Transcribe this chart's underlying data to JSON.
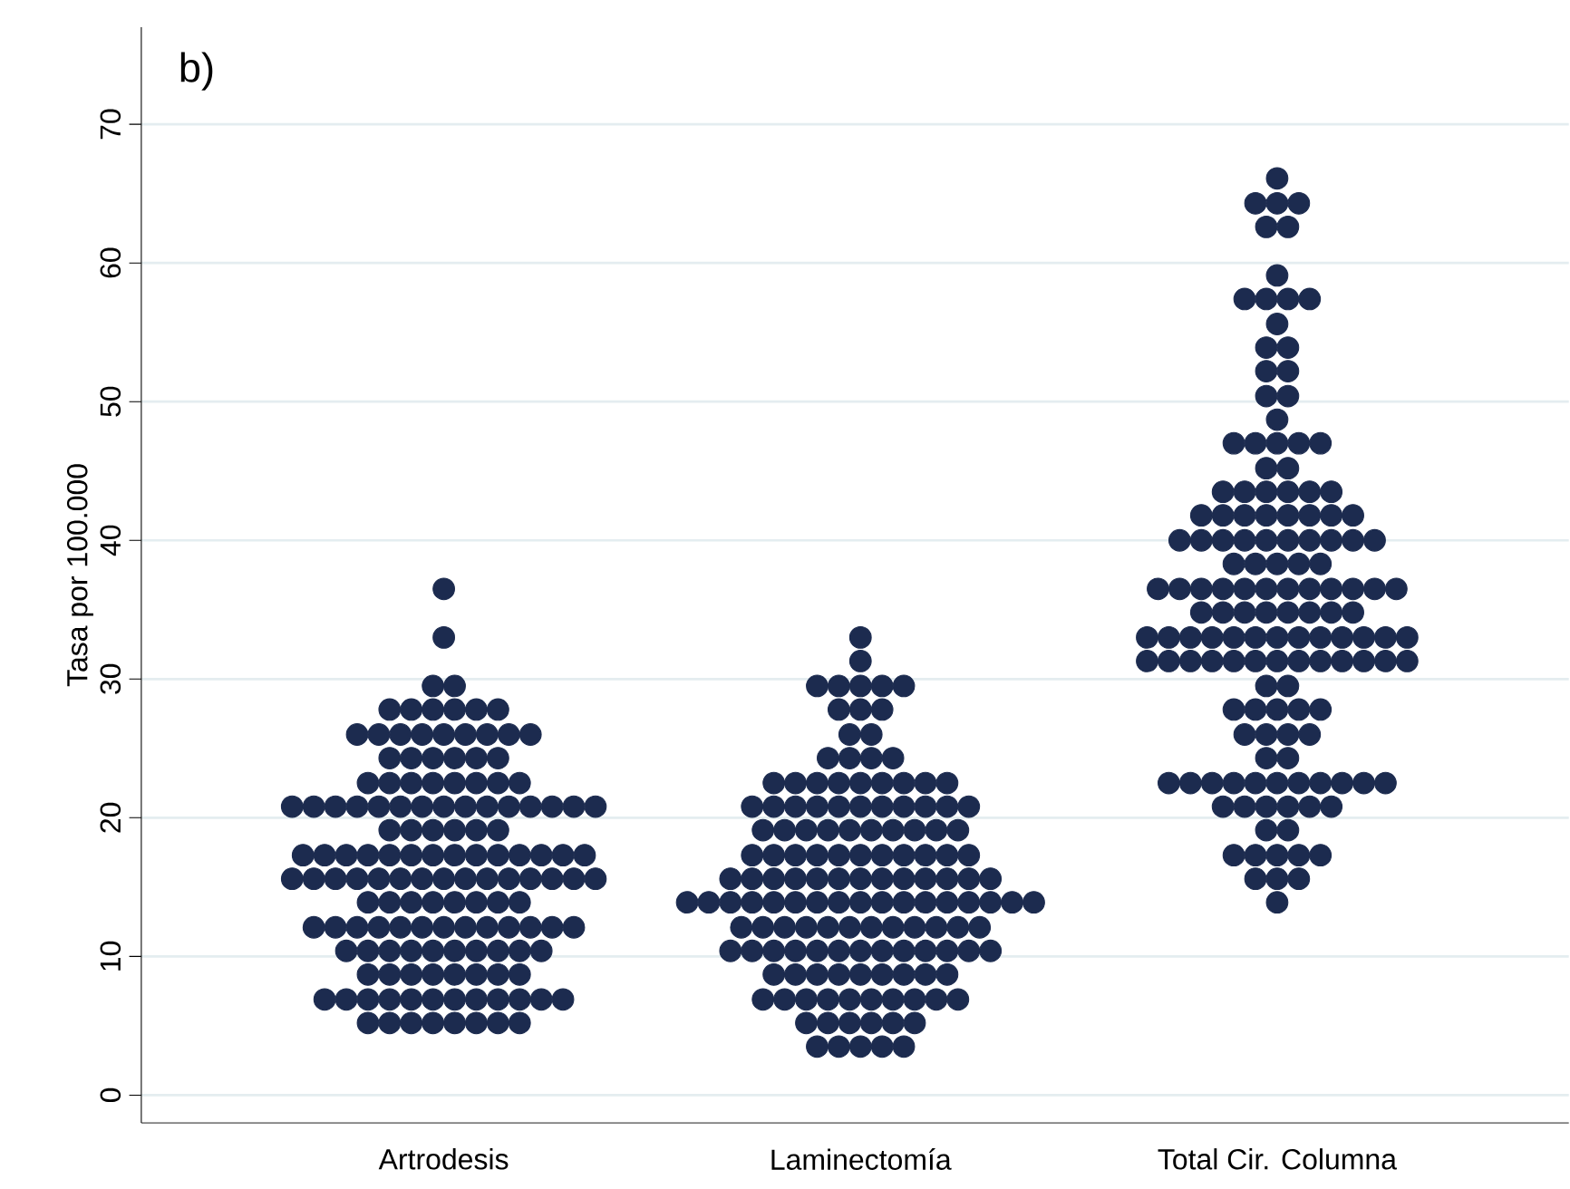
{
  "chart_data": {
    "type": "scatter",
    "ylabel": "Tasa por 100.000",
    "annotations": [
      "b)"
    ],
    "categories": [
      "Artrodesis",
      "Laminectomía",
      "Total Cir. Columna"
    ],
    "ylim": [
      -2,
      77
    ],
    "yticks": [
      0,
      10,
      20,
      30,
      40,
      50,
      60,
      70
    ],
    "grid": "y",
    "marker": "circle",
    "series": [
      {
        "color": "#1c2b4f",
        "x": [
          "Artrodesis",
          "Artrodesis",
          "Artrodesis",
          "Artrodesis",
          "Artrodesis",
          "Artrodesis",
          "Artrodesis",
          "Artrodesis",
          "Artrodesis",
          "Artrodesis",
          "Artrodesis",
          "Artrodesis",
          "Artrodesis",
          "Artrodesis",
          "Artrodesis",
          "Artrodesis",
          "Artrodesis",
          "Artrodesis",
          "Artrodesis",
          "Artrodesis",
          "Artrodesis",
          "Artrodesis",
          "Artrodesis",
          "Artrodesis",
          "Artrodesis",
          "Artrodesis",
          "Artrodesis",
          "Artrodesis",
          "Artrodesis",
          "Artrodesis",
          "Artrodesis",
          "Artrodesis",
          "Artrodesis",
          "Artrodesis",
          "Artrodesis",
          "Artrodesis",
          "Artrodesis",
          "Artrodesis",
          "Artrodesis",
          "Artrodesis",
          "Artrodesis",
          "Artrodesis",
          "Artrodesis",
          "Artrodesis",
          "Artrodesis",
          "Artrodesis",
          "Artrodesis",
          "Artrodesis",
          "Artrodesis",
          "Artrodesis",
          "Artrodesis",
          "Artrodesis",
          "Artrodesis",
          "Artrodesis",
          "Artrodesis",
          "Artrodesis",
          "Artrodesis",
          "Artrodesis",
          "Artrodesis",
          "Artrodesis",
          "Artrodesis",
          "Artrodesis",
          "Artrodesis",
          "Artrodesis",
          "Artrodesis",
          "Artrodesis",
          "Artrodesis",
          "Artrodesis",
          "Artrodesis",
          "Artrodesis",
          "Artrodesis",
          "Artrodesis",
          "Artrodesis",
          "Artrodesis",
          "Artrodesis",
          "Artrodesis",
          "Artrodesis",
          "Artrodesis",
          "Artrodesis",
          "Artrodesis",
          "Artrodesis",
          "Artrodesis",
          "Artrodesis",
          "Artrodesis",
          "Artrodesis",
          "Artrodesis",
          "Artrodesis",
          "Artrodesis",
          "Artrodesis",
          "Artrodesis",
          "Artrodesis",
          "Artrodesis",
          "Artrodesis",
          "Artrodesis",
          "Artrodesis",
          "Artrodesis",
          "Artrodesis",
          "Artrodesis",
          "Artrodesis",
          "Artrodesis",
          "Artrodesis",
          "Artrodesis",
          "Artrodesis",
          "Artrodesis",
          "Artrodesis",
          "Artrodesis",
          "Artrodesis",
          "Artrodesis",
          "Artrodesis",
          "Artrodesis",
          "Artrodesis",
          "Artrodesis",
          "Artrodesis",
          "Artrodesis",
          "Artrodesis",
          "Artrodesis",
          "Artrodesis",
          "Artrodesis",
          "Artrodesis",
          "Artrodesis",
          "Artrodesis",
          "Artrodesis",
          "Artrodesis",
          "Artrodesis",
          "Artrodesis",
          "Artrodesis",
          "Artrodesis",
          "Artrodesis",
          "Artrodesis",
          "Artrodesis",
          "Artrodesis",
          "Artrodesis",
          "Artrodesis",
          "Artrodesis",
          "Artrodesis",
          "Artrodesis",
          "Artrodesis",
          "Artrodesis",
          "Artrodesis",
          "Artrodesis",
          "Artrodesis",
          "Artrodesis"
        ],
        "values": [
          36.5,
          33.0,
          29.5,
          29.5,
          27.8,
          27.8,
          27.8,
          27.8,
          27.8,
          27.8,
          26.0,
          26.0,
          26.0,
          26.0,
          26.0,
          26.0,
          26.0,
          26.0,
          26.0,
          24.3,
          24.3,
          24.3,
          24.3,
          24.3,
          24.3,
          22.5,
          22.5,
          22.5,
          22.5,
          22.5,
          22.5,
          22.5,
          22.5,
          20.8,
          20.8,
          20.8,
          20.8,
          20.8,
          20.8,
          20.8,
          20.8,
          20.8,
          20.8,
          20.8,
          20.8,
          20.8,
          20.8,
          20.8,
          19.1,
          19.1,
          19.1,
          19.1,
          19.1,
          19.1,
          17.3,
          17.3,
          17.3,
          17.3,
          17.3,
          17.3,
          17.3,
          17.3,
          17.3,
          17.3,
          17.3,
          17.3,
          17.3,
          17.3,
          15.6,
          15.6,
          15.6,
          15.6,
          15.6,
          15.6,
          15.6,
          15.6,
          15.6,
          15.6,
          15.6,
          15.6,
          15.6,
          15.6,
          15.6,
          13.9,
          13.9,
          13.9,
          13.9,
          13.9,
          13.9,
          13.9,
          13.9,
          12.1,
          12.1,
          12.1,
          12.1,
          12.1,
          12.1,
          12.1,
          12.1,
          12.1,
          12.1,
          12.1,
          12.1,
          12.1,
          10.4,
          10.4,
          10.4,
          10.4,
          10.4,
          10.4,
          10.4,
          10.4,
          10.4,
          10.4,
          8.7,
          8.7,
          8.7,
          8.7,
          8.7,
          8.7,
          8.7,
          8.7,
          6.9,
          6.9,
          6.9,
          6.9,
          6.9,
          6.9,
          6.9,
          6.9,
          6.9,
          6.9,
          6.9,
          6.9,
          5.2,
          5.2,
          5.2,
          5.2,
          5.2,
          5.2,
          5.2,
          5.2
        ]
      },
      {
        "color": "#1c2b4f",
        "x": [
          "Laminectomía",
          "Laminectomía",
          "Laminectomía",
          "Laminectomía",
          "Laminectomía",
          "Laminectomía",
          "Laminectomía",
          "Laminectomía",
          "Laminectomía",
          "Laminectomía",
          "Laminectomía",
          "Laminectomía",
          "Laminectomía",
          "Laminectomía",
          "Laminectomía",
          "Laminectomía",
          "Laminectomía",
          "Laminectomía",
          "Laminectomía",
          "Laminectomía",
          "Laminectomía",
          "Laminectomía",
          "Laminectomía",
          "Laminectomía",
          "Laminectomía",
          "Laminectomía",
          "Laminectomía",
          "Laminectomía",
          "Laminectomía",
          "Laminectomía",
          "Laminectomía",
          "Laminectomía",
          "Laminectomía",
          "Laminectomía",
          "Laminectomía",
          "Laminectomía",
          "Laminectomía",
          "Laminectomía",
          "Laminectomía",
          "Laminectomía",
          "Laminectomía",
          "Laminectomía",
          "Laminectomía",
          "Laminectomía",
          "Laminectomía",
          "Laminectomía",
          "Laminectomía",
          "Laminectomía",
          "Laminectomía",
          "Laminectomía",
          "Laminectomía",
          "Laminectomía",
          "Laminectomía",
          "Laminectomía",
          "Laminectomía",
          "Laminectomía",
          "Laminectomía",
          "Laminectomía",
          "Laminectomía",
          "Laminectomía",
          "Laminectomía",
          "Laminectomía",
          "Laminectomía",
          "Laminectomía",
          "Laminectomía",
          "Laminectomía",
          "Laminectomía",
          "Laminectomía",
          "Laminectomía",
          "Laminectomía",
          "Laminectomía",
          "Laminectomía",
          "Laminectomía",
          "Laminectomía",
          "Laminectomía",
          "Laminectomía",
          "Laminectomía",
          "Laminectomía",
          "Laminectomía",
          "Laminectomía",
          "Laminectomía",
          "Laminectomía",
          "Laminectomía",
          "Laminectomía",
          "Laminectomía",
          "Laminectomía",
          "Laminectomía",
          "Laminectomía",
          "Laminectomía",
          "Laminectomía",
          "Laminectomía",
          "Laminectomía",
          "Laminectomía",
          "Laminectomía",
          "Laminectomía",
          "Laminectomía",
          "Laminectomía",
          "Laminectomía",
          "Laminectomía",
          "Laminectomía",
          "Laminectomía",
          "Laminectomía",
          "Laminectomía",
          "Laminectomía",
          "Laminectomía",
          "Laminectomía",
          "Laminectomía",
          "Laminectomía",
          "Laminectomía",
          "Laminectomía",
          "Laminectomía",
          "Laminectomía",
          "Laminectomía",
          "Laminectomía",
          "Laminectomía",
          "Laminectomía",
          "Laminectomía",
          "Laminectomía",
          "Laminectomía",
          "Laminectomía",
          "Laminectomía",
          "Laminectomía",
          "Laminectomía",
          "Laminectomía",
          "Laminectomía",
          "Laminectomía",
          "Laminectomía",
          "Laminectomía",
          "Laminectomía",
          "Laminectomía",
          "Laminectomía",
          "Laminectomía",
          "Laminectomía",
          "Laminectomía",
          "Laminectomía",
          "Laminectomía",
          "Laminectomía",
          "Laminectomía",
          "Laminectomía",
          "Laminectomía",
          "Laminectomía",
          "Laminectomía"
        ],
        "values": [
          33.0,
          31.3,
          29.5,
          29.5,
          29.5,
          29.5,
          29.5,
          27.8,
          27.8,
          27.8,
          26.0,
          26.0,
          24.3,
          24.3,
          24.3,
          24.3,
          22.5,
          22.5,
          22.5,
          22.5,
          22.5,
          22.5,
          22.5,
          22.5,
          22.5,
          20.8,
          20.8,
          20.8,
          20.8,
          20.8,
          20.8,
          20.8,
          20.8,
          20.8,
          20.8,
          20.8,
          19.1,
          19.1,
          19.1,
          19.1,
          19.1,
          19.1,
          19.1,
          19.1,
          19.1,
          19.1,
          17.3,
          17.3,
          17.3,
          17.3,
          17.3,
          17.3,
          17.3,
          17.3,
          17.3,
          17.3,
          17.3,
          15.6,
          15.6,
          15.6,
          15.6,
          15.6,
          15.6,
          15.6,
          15.6,
          15.6,
          15.6,
          15.6,
          15.6,
          15.6,
          13.9,
          13.9,
          13.9,
          13.9,
          13.9,
          13.9,
          13.9,
          13.9,
          13.9,
          13.9,
          13.9,
          13.9,
          13.9,
          13.9,
          13.9,
          13.9,
          13.9,
          12.1,
          12.1,
          12.1,
          12.1,
          12.1,
          12.1,
          12.1,
          12.1,
          12.1,
          12.1,
          12.1,
          12.1,
          10.4,
          10.4,
          10.4,
          10.4,
          10.4,
          10.4,
          10.4,
          10.4,
          10.4,
          10.4,
          10.4,
          10.4,
          10.4,
          8.7,
          8.7,
          8.7,
          8.7,
          8.7,
          8.7,
          8.7,
          8.7,
          8.7,
          6.9,
          6.9,
          6.9,
          6.9,
          6.9,
          6.9,
          6.9,
          6.9,
          6.9,
          6.9,
          5.2,
          5.2,
          5.2,
          5.2,
          5.2,
          5.2,
          3.5,
          3.5,
          3.5,
          3.5,
          3.5
        ]
      },
      {
        "color": "#1c2b4f",
        "x": [
          "Total Cir. Columna",
          "Total Cir. Columna",
          "Total Cir. Columna",
          "Total Cir. Columna",
          "Total Cir. Columna",
          "Total Cir. Columna",
          "Total Cir. Columna",
          "Total Cir. Columna",
          "Total Cir. Columna",
          "Total Cir. Columna",
          "Total Cir. Columna",
          "Total Cir. Columna",
          "Total Cir. Columna",
          "Total Cir. Columna",
          "Total Cir. Columna",
          "Total Cir. Columna",
          "Total Cir. Columna",
          "Total Cir. Columna",
          "Total Cir. Columna",
          "Total Cir. Columna",
          "Total Cir. Columna",
          "Total Cir. Columna",
          "Total Cir. Columna",
          "Total Cir. Columna",
          "Total Cir. Columna",
          "Total Cir. Columna",
          "Total Cir. Columna",
          "Total Cir. Columna",
          "Total Cir. Columna",
          "Total Cir. Columna",
          "Total Cir. Columna",
          "Total Cir. Columna",
          "Total Cir. Columna",
          "Total Cir. Columna",
          "Total Cir. Columna",
          "Total Cir. Columna",
          "Total Cir. Columna",
          "Total Cir. Columna",
          "Total Cir. Columna",
          "Total Cir. Columna",
          "Total Cir. Columna",
          "Total Cir. Columna",
          "Total Cir. Columna",
          "Total Cir. Columna",
          "Total Cir. Columna",
          "Total Cir. Columna",
          "Total Cir. Columna",
          "Total Cir. Columna",
          "Total Cir. Columna",
          "Total Cir. Columna",
          "Total Cir. Columna",
          "Total Cir. Columna",
          "Total Cir. Columna",
          "Total Cir. Columna",
          "Total Cir. Columna",
          "Total Cir. Columna",
          "Total Cir. Columna",
          "Total Cir. Columna",
          "Total Cir. Columna",
          "Total Cir. Columna",
          "Total Cir. Columna",
          "Total Cir. Columna",
          "Total Cir. Columna",
          "Total Cir. Columna",
          "Total Cir. Columna",
          "Total Cir. Columna",
          "Total Cir. Columna",
          "Total Cir. Columna",
          "Total Cir. Columna",
          "Total Cir. Columna",
          "Total Cir. Columna",
          "Total Cir. Columna",
          "Total Cir. Columna",
          "Total Cir. Columna",
          "Total Cir. Columna",
          "Total Cir. Columna",
          "Total Cir. Columna",
          "Total Cir. Columna",
          "Total Cir. Columna",
          "Total Cir. Columna",
          "Total Cir. Columna",
          "Total Cir. Columna",
          "Total Cir. Columna",
          "Total Cir. Columna",
          "Total Cir. Columna",
          "Total Cir. Columna",
          "Total Cir. Columna",
          "Total Cir. Columna",
          "Total Cir. Columna",
          "Total Cir. Columna",
          "Total Cir. Columna",
          "Total Cir. Columna",
          "Total Cir. Columna",
          "Total Cir. Columna",
          "Total Cir. Columna",
          "Total Cir. Columna",
          "Total Cir. Columna",
          "Total Cir. Columna",
          "Total Cir. Columna",
          "Total Cir. Columna",
          "Total Cir. Columna",
          "Total Cir. Columna",
          "Total Cir. Columna",
          "Total Cir. Columna",
          "Total Cir. Columna",
          "Total Cir. Columna",
          "Total Cir. Columna",
          "Total Cir. Columna",
          "Total Cir. Columna",
          "Total Cir. Columna",
          "Total Cir. Columna",
          "Total Cir. Columna",
          "Total Cir. Columna",
          "Total Cir. Columna",
          "Total Cir. Columna",
          "Total Cir. Columna",
          "Total Cir. Columna",
          "Total Cir. Columna",
          "Total Cir. Columna",
          "Total Cir. Columna",
          "Total Cir. Columna",
          "Total Cir. Columna",
          "Total Cir. Columna",
          "Total Cir. Columna",
          "Total Cir. Columna",
          "Total Cir. Columna",
          "Total Cir. Columna",
          "Total Cir. Columna",
          "Total Cir. Columna",
          "Total Cir. Columna",
          "Total Cir. Columna",
          "Total Cir. Columna",
          "Total Cir. Columna",
          "Total Cir. Columna",
          "Total Cir. Columna",
          "Total Cir. Columna",
          "Total Cir. Columna",
          "Total Cir. Columna",
          "Total Cir. Columna",
          "Total Cir. Columna",
          "Total Cir. Columna",
          "Total Cir. Columna"
        ],
        "values": [
          66.1,
          64.3,
          64.3,
          64.3,
          62.6,
          62.6,
          59.1,
          57.4,
          57.4,
          57.4,
          57.4,
          55.6,
          53.9,
          53.9,
          52.2,
          52.2,
          50.4,
          50.4,
          48.7,
          47.0,
          47.0,
          47.0,
          47.0,
          47.0,
          45.2,
          45.2,
          43.5,
          43.5,
          43.5,
          43.5,
          43.5,
          43.5,
          41.8,
          41.8,
          41.8,
          41.8,
          41.8,
          41.8,
          41.8,
          41.8,
          40.0,
          40.0,
          40.0,
          40.0,
          40.0,
          40.0,
          40.0,
          40.0,
          40.0,
          40.0,
          38.3,
          38.3,
          38.3,
          38.3,
          38.3,
          36.5,
          36.5,
          36.5,
          36.5,
          36.5,
          36.5,
          36.5,
          36.5,
          36.5,
          36.5,
          36.5,
          36.5,
          34.8,
          34.8,
          34.8,
          34.8,
          34.8,
          34.8,
          34.8,
          34.8,
          33.0,
          33.0,
          33.0,
          33.0,
          33.0,
          33.0,
          33.0,
          33.0,
          33.0,
          33.0,
          33.0,
          33.0,
          33.0,
          31.3,
          31.3,
          31.3,
          31.3,
          31.3,
          31.3,
          31.3,
          31.3,
          31.3,
          31.3,
          31.3,
          31.3,
          31.3,
          29.5,
          29.5,
          27.8,
          27.8,
          27.8,
          27.8,
          27.8,
          26.0,
          26.0,
          26.0,
          26.0,
          24.3,
          24.3,
          22.5,
          22.5,
          22.5,
          22.5,
          22.5,
          22.5,
          22.5,
          22.5,
          22.5,
          22.5,
          22.5,
          20.8,
          20.8,
          20.8,
          20.8,
          20.8,
          20.8,
          19.1,
          19.1,
          17.3,
          17.3,
          17.3,
          17.3,
          17.3,
          15.6,
          15.6,
          15.6,
          13.9
        ]
      }
    ]
  }
}
